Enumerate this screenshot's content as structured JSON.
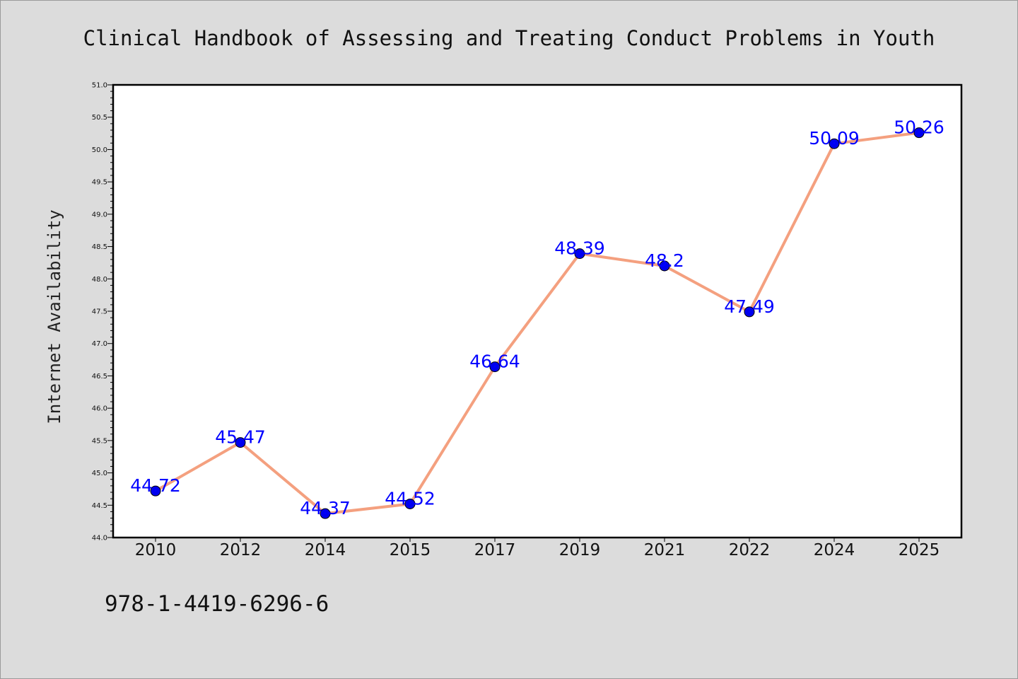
{
  "chart_data": {
    "type": "line",
    "title": "Clinical Handbook of Assessing and Treating Conduct Problems in Youth",
    "xlabel": "",
    "ylabel": "Internet Availability",
    "categories": [
      "2010",
      "2012",
      "2014",
      "2015",
      "2017",
      "2019",
      "2021",
      "2022",
      "2024",
      "2025"
    ],
    "values": [
      44.72,
      45.47,
      44.37,
      44.52,
      46.64,
      48.39,
      48.2,
      47.49,
      50.09,
      50.26
    ],
    "data_labels": [
      "44.72",
      "45.47",
      "44.37",
      "44.52",
      "46.64",
      "48.39",
      "48.2",
      "47.49",
      "50.09",
      "50.26"
    ],
    "ylim": [
      44.0,
      51.0
    ],
    "yticks": [
      "44.0",
      "44.5",
      "45.0",
      "45.5",
      "46.0",
      "46.5",
      "47.0",
      "47.5",
      "48.0",
      "48.5",
      "49.0",
      "49.5",
      "50.0",
      "50.5",
      "51.0"
    ],
    "grid": false,
    "line_color": "#f4a07f",
    "marker_color": "#0000ee",
    "label_color": "#0000ff",
    "annotation": "978-1-4419-6296-6"
  }
}
